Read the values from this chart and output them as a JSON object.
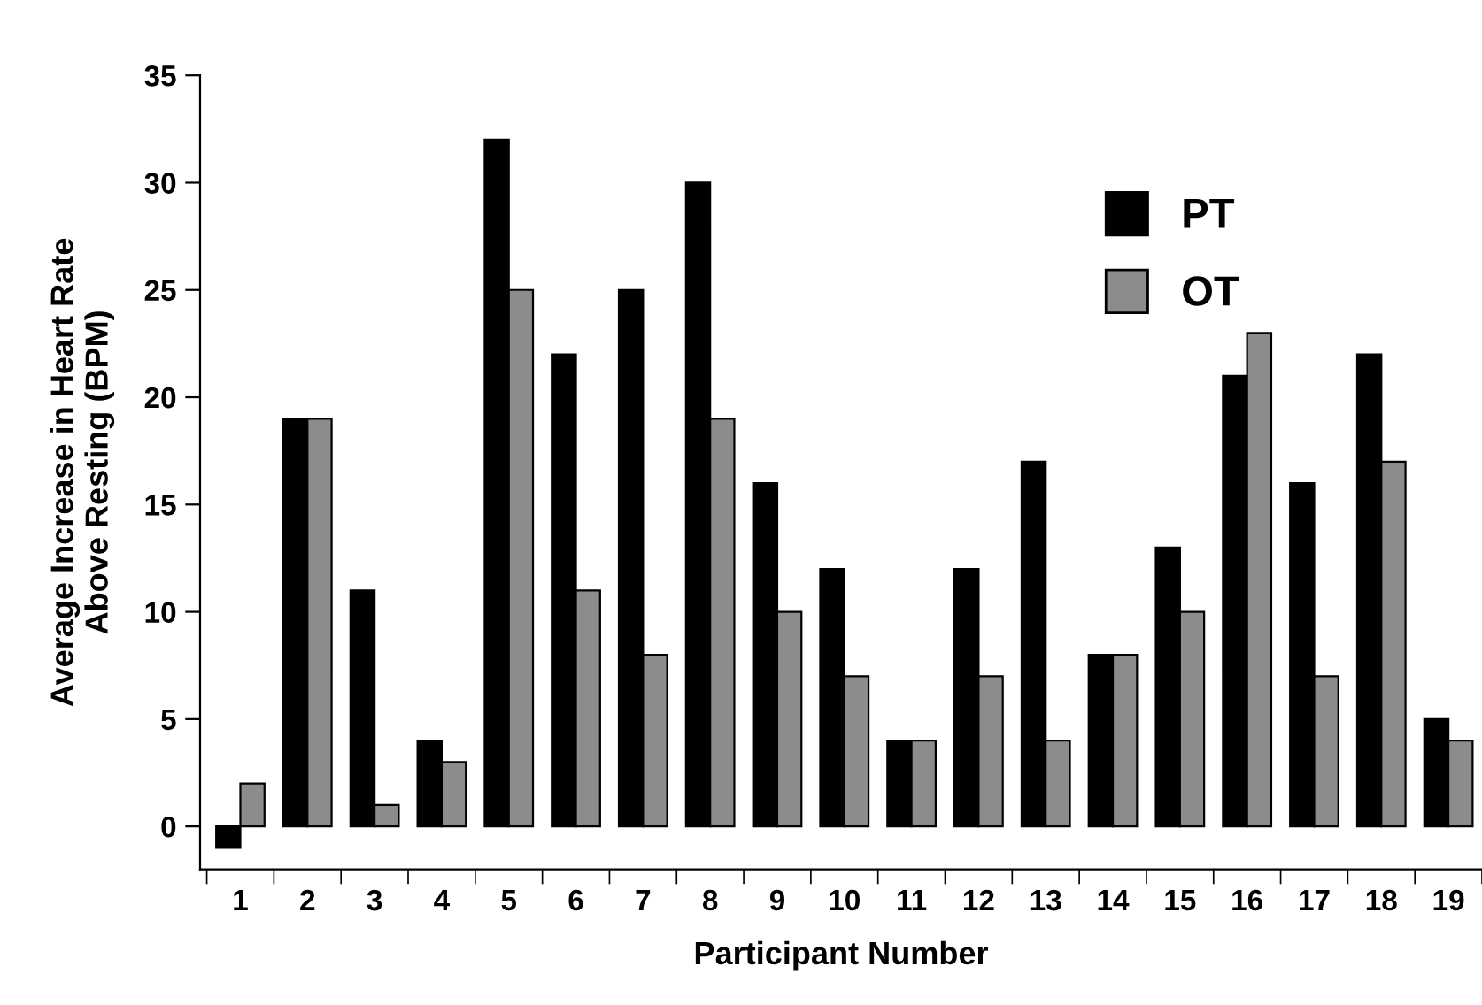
{
  "chart_data": {
    "type": "bar",
    "xlabel": "Participant Number",
    "ylabel": "Average Increase in Heart Rate\nAbove Resting (BPM)",
    "categories": [
      "1",
      "2",
      "3",
      "4",
      "5",
      "6",
      "7",
      "8",
      "9",
      "10",
      "11",
      "12",
      "13",
      "14",
      "15",
      "16",
      "17",
      "18",
      "19"
    ],
    "series": [
      {
        "name": "PT",
        "color": "#000000",
        "values": [
          -1,
          19,
          11,
          4,
          32,
          22,
          25,
          30,
          16,
          12,
          4,
          12,
          17,
          8,
          13,
          21,
          16,
          22,
          5
        ]
      },
      {
        "name": "OT",
        "color": "#8c8c8c",
        "values": [
          2,
          19,
          1,
          3,
          25,
          11,
          8,
          19,
          10,
          7,
          4,
          7,
          4,
          8,
          10,
          23,
          7,
          17,
          4
        ]
      }
    ],
    "ylim": [
      -2,
      35
    ],
    "yticks": [
      0,
      5,
      10,
      15,
      20,
      25,
      30,
      35
    ],
    "grid": false,
    "legend": "top right"
  }
}
